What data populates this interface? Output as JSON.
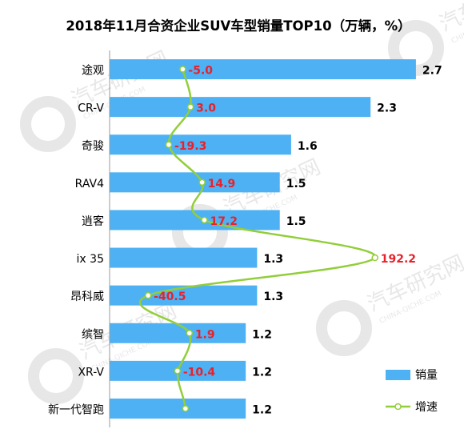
{
  "chart_data": {
    "type": "bar",
    "orientation": "horizontal",
    "title": "2018年11月合资企业SUV车型销量TOP10（万辆，%）",
    "categories": [
      "途观",
      "CR-V",
      "奇骏",
      "RAV4",
      "逍客",
      "ix 35",
      "昂科威",
      "缤智",
      "XR-V",
      "新一代智跑"
    ],
    "series": [
      {
        "name": "销量",
        "type": "bar",
        "color": "#4DB1F3",
        "values": [
          2.7,
          2.3,
          1.6,
          1.5,
          1.5,
          1.3,
          1.3,
          1.2,
          1.2,
          1.2
        ]
      },
      {
        "name": "增速",
        "type": "line",
        "color": "#92CE3A",
        "values": [
          -5.0,
          3.0,
          -19.3,
          14.9,
          17.2,
          192.2,
          -40.5,
          1.9,
          -10.4,
          null
        ],
        "labels": [
          "-5.0",
          "3.0",
          "-19.3",
          "14.9",
          "17.2",
          "192.2",
          "-40.5",
          "1.9",
          "-10.4",
          ""
        ]
      }
    ],
    "bar_labels": [
      "2.7",
      "2.3",
      "1.6",
      "1.5",
      "1.5",
      "1.3",
      "1.3",
      "1.2",
      "1.2",
      "1.2"
    ],
    "bar_xlim": [
      0,
      2.75
    ],
    "growth_xlim": [
      -80,
      240
    ],
    "growth_label_color": "#E8212B",
    "legend_position": "bottom-right",
    "grid": false
  },
  "watermark": {
    "text": "汽车研究网",
    "subtext": "CHINA-QICHE.COM"
  }
}
